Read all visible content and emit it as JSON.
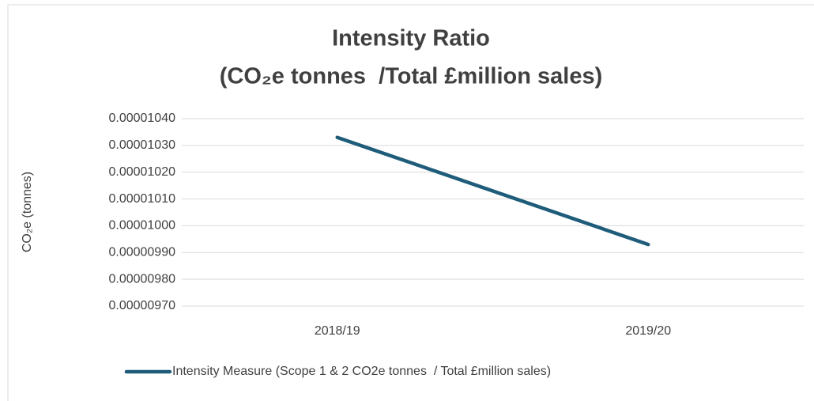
{
  "chart_data": {
    "type": "line",
    "title": [
      "Intensity Ratio",
      "(CO₂e tonnes  /Total £million sales)"
    ],
    "y_label": "CO₂e (tonnes)",
    "categories": [
      "2018/19",
      "2019/20"
    ],
    "series": [
      {
        "name": "Intensity Measure (Scope 1 & 2 CO2e tonnes  / Total £million sales)",
        "color": "#1e5c7a",
        "values": [
          1.033e-05,
          9.93e-06
        ]
      }
    ],
    "ylim": [
      9.7e-06,
      1.04e-05
    ],
    "yticks": [
      {
        "value": 9.7e-06,
        "label": "0.00000970"
      },
      {
        "value": 9.8e-06,
        "label": "0.00000980"
      },
      {
        "value": 9.9e-06,
        "label": "0.00000990"
      },
      {
        "value": 1e-05,
        "label": "0.00001000"
      },
      {
        "value": 1.01e-05,
        "label": "0.00001010"
      },
      {
        "value": 1.02e-05,
        "label": "0.00001020"
      },
      {
        "value": 1.03e-05,
        "label": "0.00001030"
      },
      {
        "value": 1.04e-05,
        "label": "0.00001040"
      }
    ],
    "grid": true,
    "legend": "bottom"
  }
}
